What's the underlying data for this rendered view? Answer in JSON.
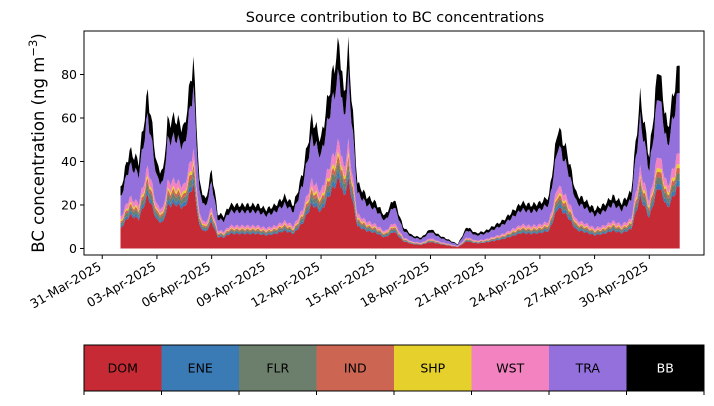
{
  "chart_data": {
    "type": "area",
    "stacked": true,
    "title": "Source contribution to BC concentrations",
    "ylabel_main": "BC concentration (ng m",
    "ylabel_sup": "−3",
    "ylabel_close": ")",
    "ylim": [
      -3,
      100
    ],
    "yticks": [
      0,
      20,
      40,
      60,
      80
    ],
    "xlim": [
      "2025-03-30",
      "2025-05-03"
    ],
    "xticks": [
      "31-Mar-2025",
      "03-Apr-2025",
      "06-Apr-2025",
      "09-Apr-2025",
      "12-Apr-2025",
      "15-Apr-2025",
      "18-Apr-2025",
      "21-Apr-2025",
      "24-Apr-2025",
      "27-Apr-2025",
      "30-Apr-2025"
    ],
    "grid": false,
    "legend_position": "bottom",
    "series": [
      {
        "name": "DOM",
        "color": "#c62b35"
      },
      {
        "name": "ENE",
        "color": "#3a7ab5"
      },
      {
        "name": "FLR",
        "color": "#6b7f6c"
      },
      {
        "name": "IND",
        "color": "#cd6553"
      },
      {
        "name": "SHP",
        "color": "#e6d12c"
      },
      {
        "name": "WST",
        "color": "#f283c0"
      },
      {
        "name": "TRA",
        "color": "#9370db"
      },
      {
        "name": "BB",
        "color": "#000000"
      }
    ],
    "total_profile": [
      [
        "2025-04-01T00:00",
        27
      ],
      [
        "2025-04-01T12:00",
        45
      ],
      [
        "2025-04-02T00:00",
        40
      ],
      [
        "2025-04-02T12:00",
        72
      ],
      [
        "2025-04-03T00:00",
        38
      ],
      [
        "2025-04-03T08:00",
        35
      ],
      [
        "2025-04-03T14:00",
        58
      ],
      [
        "2025-04-04T00:00",
        60
      ],
      [
        "2025-04-04T12:00",
        55
      ],
      [
        "2025-04-05T00:00",
        87
      ],
      [
        "2025-04-05T08:00",
        30
      ],
      [
        "2025-04-05T16:00",
        22
      ],
      [
        "2025-04-06T00:00",
        36
      ],
      [
        "2025-04-06T08:00",
        16
      ],
      [
        "2025-04-06T16:00",
        15
      ],
      [
        "2025-04-07T00:00",
        20
      ],
      [
        "2025-04-08T00:00",
        20
      ],
      [
        "2025-04-08T12:00",
        20
      ],
      [
        "2025-04-09T00:00",
        18
      ],
      [
        "2025-04-09T12:00",
        20
      ],
      [
        "2025-04-10T00:00",
        24
      ],
      [
        "2025-04-10T12:00",
        20
      ],
      [
        "2025-04-11T00:00",
        35
      ],
      [
        "2025-04-11T12:00",
        60
      ],
      [
        "2025-04-12T00:00",
        50
      ],
      [
        "2025-04-12T12:00",
        75
      ],
      [
        "2025-04-13T00:00",
        95
      ],
      [
        "2025-04-13T06:00",
        70
      ],
      [
        "2025-04-13T12:00",
        92
      ],
      [
        "2025-04-14T00:00",
        30
      ],
      [
        "2025-04-14T12:00",
        24
      ],
      [
        "2025-04-15T00:00",
        21
      ],
      [
        "2025-04-15T12:00",
        15
      ],
      [
        "2025-04-16T00:00",
        23
      ],
      [
        "2025-04-16T12:00",
        10
      ],
      [
        "2025-04-17T00:00",
        6
      ],
      [
        "2025-04-17T12:00",
        5
      ],
      [
        "2025-04-18T00:00",
        9
      ],
      [
        "2025-04-18T12:00",
        6
      ],
      [
        "2025-04-19T00:00",
        4
      ],
      [
        "2025-04-19T12:00",
        2
      ],
      [
        "2025-04-20T00:00",
        10
      ],
      [
        "2025-04-20T12:00",
        7
      ],
      [
        "2025-04-21T00:00",
        8
      ],
      [
        "2025-04-22T00:00",
        13
      ],
      [
        "2025-04-22T12:00",
        17
      ],
      [
        "2025-04-23T00:00",
        21
      ],
      [
        "2025-04-23T12:00",
        20
      ],
      [
        "2025-04-24T00:00",
        21
      ],
      [
        "2025-04-24T12:00",
        24
      ],
      [
        "2025-04-25T00:00",
        56
      ],
      [
        "2025-04-25T12:00",
        44
      ],
      [
        "2025-04-26T00:00",
        25
      ],
      [
        "2025-04-26T12:00",
        22
      ],
      [
        "2025-04-27T00:00",
        18
      ],
      [
        "2025-04-27T12:00",
        20
      ],
      [
        "2025-04-28T00:00",
        24
      ],
      [
        "2025-04-28T12:00",
        21
      ],
      [
        "2025-04-29T00:00",
        26
      ],
      [
        "2025-04-29T12:00",
        70
      ],
      [
        "2025-04-30T00:00",
        42
      ],
      [
        "2025-04-30T12:00",
        85
      ],
      [
        "2025-05-01T00:00",
        55
      ],
      [
        "2025-05-01T12:00",
        80
      ],
      [
        "2025-05-01T16:00",
        84
      ]
    ],
    "source_fractions": [
      0.34,
      0.03,
      0.04,
      0.03,
      0.02,
      0.06,
      0.33,
      0.15
    ]
  }
}
